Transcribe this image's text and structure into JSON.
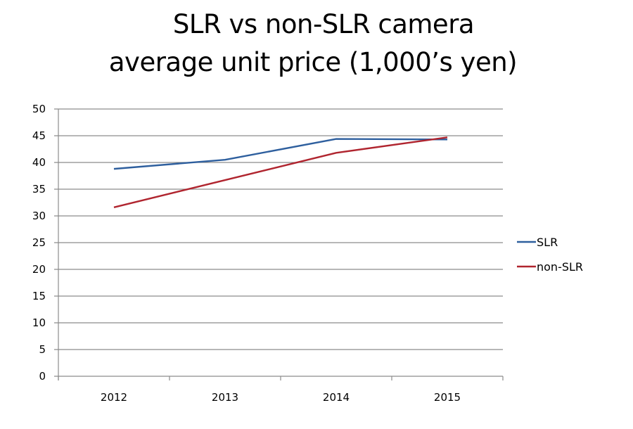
{
  "chart_data": {
    "type": "line",
    "title": "SLR vs non-SLR camera",
    "subtitle": "average unit price (1,000’s yen)",
    "xlabel": "",
    "ylabel": "",
    "categories": [
      "2012",
      "2013",
      "2014",
      "2015"
    ],
    "series": [
      {
        "name": "SLR",
        "color": "#2e5f9e",
        "values": [
          38.8,
          40.5,
          44.4,
          44.3
        ]
      },
      {
        "name": "non-SLR",
        "color": "#b0252f",
        "values": [
          31.6,
          36.7,
          41.8,
          44.7
        ]
      }
    ],
    "ylim": [
      0,
      50
    ],
    "yticks": [
      "0",
      "5",
      "10",
      "15",
      "20",
      "25",
      "30",
      "35",
      "40",
      "45",
      "50"
    ],
    "grid": true,
    "legend": "right"
  }
}
